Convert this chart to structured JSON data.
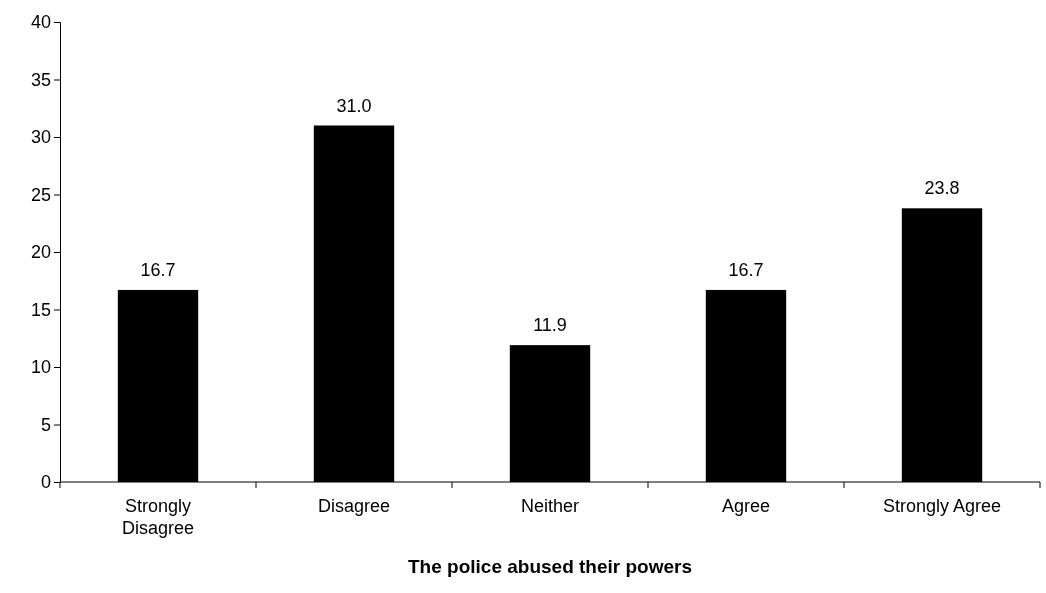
{
  "chart_data": {
    "type": "bar",
    "xlabel": "The police abused their powers",
    "categories": [
      "Strongly Disagree",
      "Disagree",
      "Neither",
      "Agree",
      "Strongly Agree"
    ],
    "values": [
      16.7,
      31.0,
      11.9,
      16.7,
      23.8
    ],
    "value_labels": [
      "16.7",
      "31.0",
      "11.9",
      "16.7",
      "23.8"
    ],
    "color": "#000000",
    "ylim": [
      0,
      40
    ],
    "yticks": [
      0,
      5,
      10,
      15,
      20,
      25,
      30,
      35,
      40
    ],
    "grid": false
  }
}
